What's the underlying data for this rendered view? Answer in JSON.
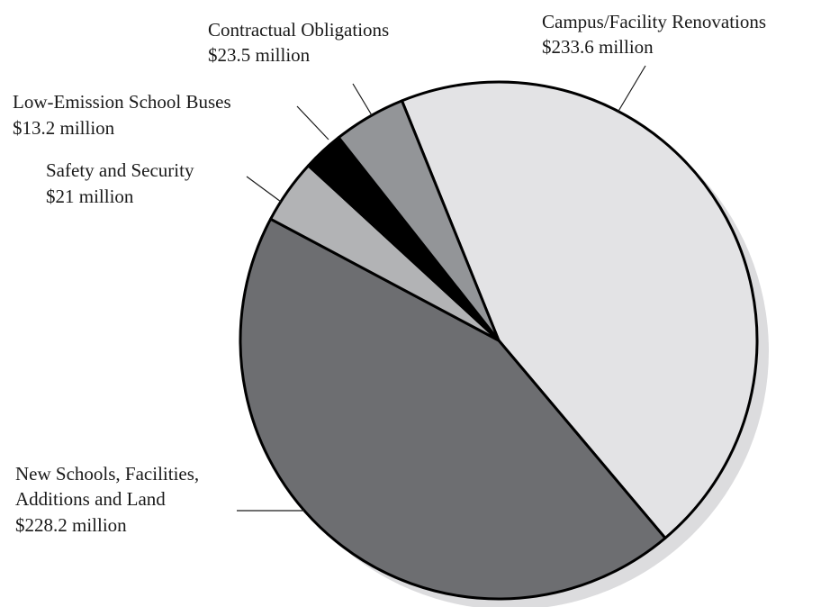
{
  "chart_data": {
    "type": "pie",
    "unit": "million",
    "slices": [
      {
        "key": "renovations",
        "name": "Campus/Facility Renovations",
        "value": 233.6,
        "label": "$233.6 million",
        "color": "#e3e3e5"
      },
      {
        "key": "new_schools",
        "name_lines": [
          "New Schools, Facilities,",
          "Additions and Land"
        ],
        "value": 228.2,
        "label": "$228.2 million",
        "color": "#6d6e71"
      },
      {
        "key": "safety",
        "name": "Safety and Security",
        "value": 21,
        "label": "$21 million",
        "color": "#b2b3b5"
      },
      {
        "key": "buses",
        "name": "Low-Emission School Buses",
        "value": 13.2,
        "label": "$13.2 million",
        "color": "#000000"
      },
      {
        "key": "contractual",
        "name": "Contractual Obligations",
        "value": 23.5,
        "label": "$23.5 million",
        "color": "#939598"
      }
    ],
    "shadow_color": "#dcdcde",
    "outline_color": "#000000"
  }
}
